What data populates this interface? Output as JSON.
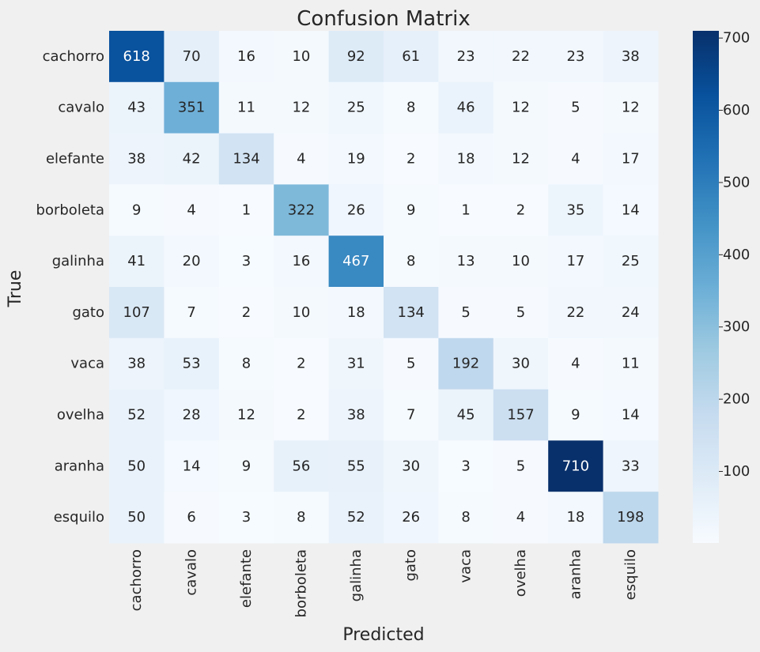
{
  "chart_data": {
    "type": "heatmap",
    "title": "Confusion Matrix",
    "xlabel": "Predicted",
    "ylabel": "True",
    "x_categories": [
      "cachorro",
      "cavalo",
      "elefante",
      "borboleta",
      "galinha",
      "gato",
      "vaca",
      "ovelha",
      "aranha",
      "esquilo"
    ],
    "y_categories": [
      "cachorro",
      "cavalo",
      "elefante",
      "borboleta",
      "galinha",
      "gato",
      "vaca",
      "ovelha",
      "aranha",
      "esquilo"
    ],
    "values": [
      [
        618,
        70,
        16,
        10,
        92,
        61,
        23,
        22,
        23,
        38
      ],
      [
        43,
        351,
        11,
        12,
        25,
        8,
        46,
        12,
        5,
        12
      ],
      [
        38,
        42,
        134,
        4,
        19,
        2,
        18,
        12,
        4,
        17
      ],
      [
        9,
        4,
        1,
        322,
        26,
        9,
        1,
        2,
        35,
        14
      ],
      [
        41,
        20,
        3,
        16,
        467,
        8,
        13,
        10,
        17,
        25
      ],
      [
        107,
        7,
        2,
        10,
        18,
        134,
        5,
        5,
        22,
        24
      ],
      [
        38,
        53,
        8,
        2,
        31,
        5,
        192,
        30,
        4,
        11
      ],
      [
        52,
        28,
        12,
        2,
        38,
        7,
        45,
        157,
        9,
        14
      ],
      [
        50,
        14,
        9,
        56,
        55,
        30,
        3,
        5,
        710,
        33
      ],
      [
        50,
        6,
        3,
        8,
        52,
        26,
        8,
        4,
        18,
        198
      ]
    ],
    "colormap": "Blues",
    "color_range": [
      1,
      710
    ],
    "colorbar_ticks": [
      100,
      200,
      300,
      400,
      500,
      600,
      700
    ],
    "grid": false,
    "legend": "colorbar-right"
  }
}
